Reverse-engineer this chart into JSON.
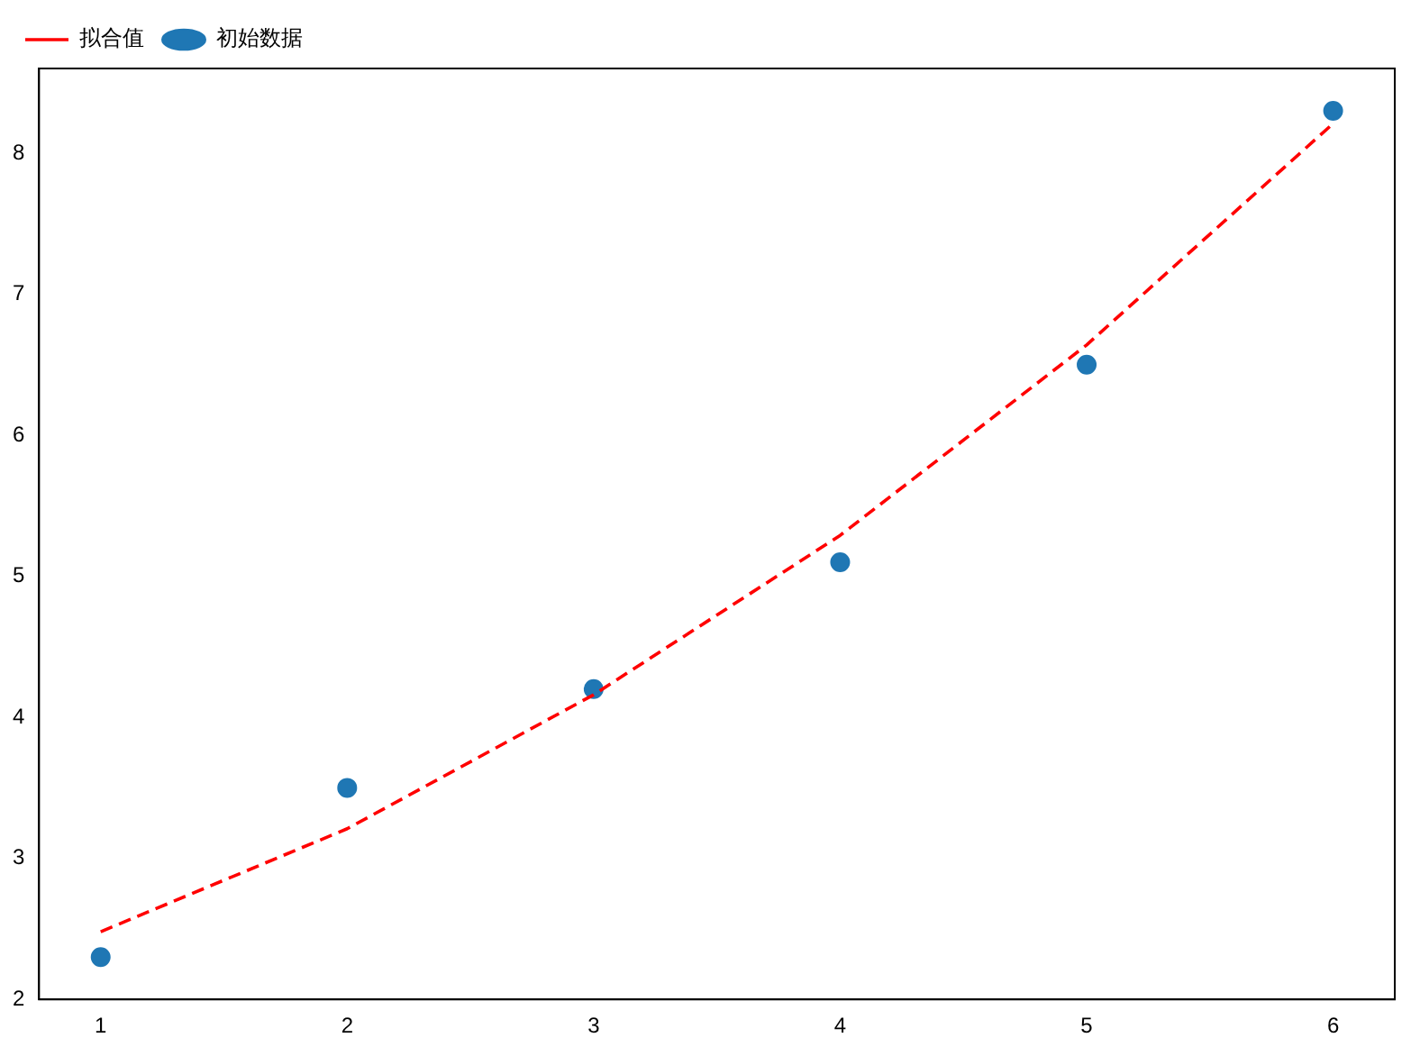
{
  "chart_data": {
    "type": "scatter",
    "x": [
      1,
      2,
      3,
      4,
      5,
      6
    ],
    "series": [
      {
        "name": "拟合值",
        "type": "line",
        "color": "#ff0000",
        "line_style": "dashed",
        "marker": "none",
        "values": [
          2.48,
          3.21,
          4.16,
          5.29,
          6.64,
          8.21
        ]
      },
      {
        "name": "初始数据",
        "type": "scatter",
        "color": "#1f77b4",
        "marker": "circle",
        "values": [
          2.3,
          3.5,
          4.2,
          5.1,
          6.5,
          8.3
        ]
      }
    ],
    "xlim": [
      0.75,
      6.25
    ],
    "xticks": [
      1,
      2,
      3,
      4,
      5,
      6
    ],
    "ylim": [
      2,
      8.6
    ],
    "yticks": [
      2,
      3,
      4,
      5,
      6,
      7,
      8
    ],
    "grid": false,
    "legend": "top left"
  }
}
